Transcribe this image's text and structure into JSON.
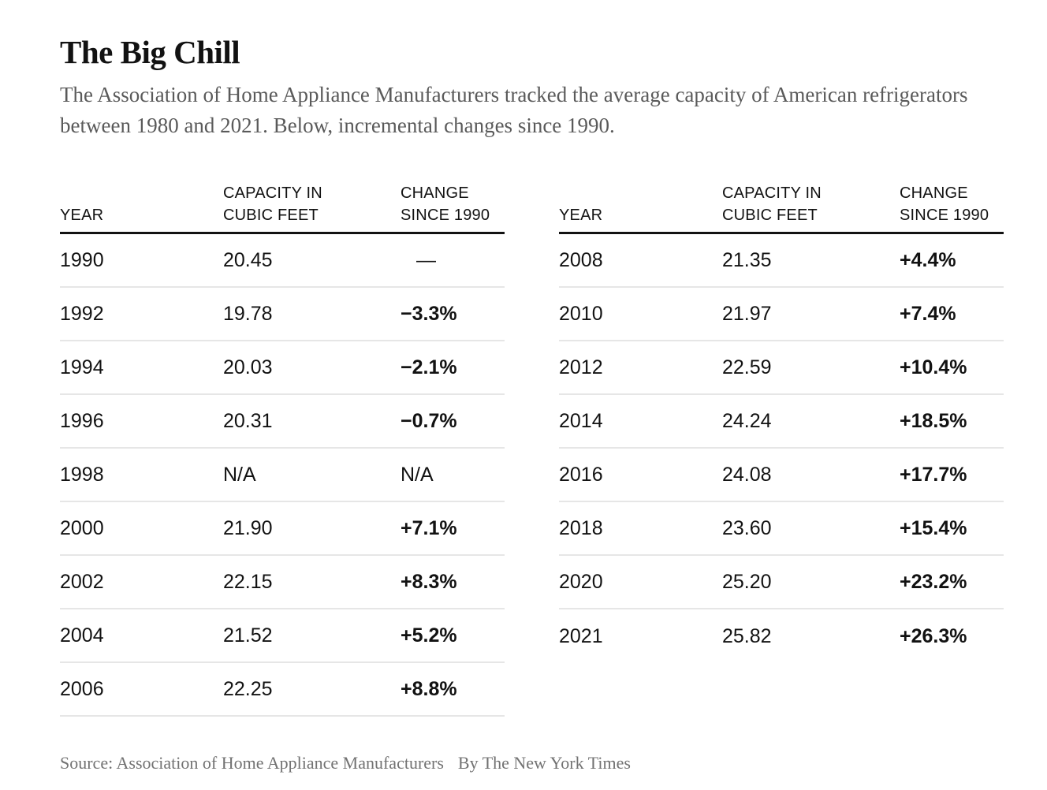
{
  "page": {
    "title": "The Big Chill",
    "subtitle": "The Association of Home Appliance Manufacturers tracked the average capacity of American refrigerators between 1980 and 2021. Below, incremental changes since 1990.",
    "source_label": "Source: Association of Home Appliance Manufacturers",
    "byline": "By The New York Times"
  },
  "colors": {
    "text": "#121212",
    "subtitle": "#5a5a5a",
    "footer": "#727272",
    "header_rule": "#121212",
    "row_divider": "#e6e6e6",
    "background": "#ffffff"
  },
  "table_headers": {
    "year": "YEAR",
    "capacity_line1": "CAPACITY IN",
    "capacity_line2": "CUBIC FEET",
    "change_line1": "CHANGE",
    "change_line2": "SINCE 1990"
  },
  "tables": [
    {
      "rows": [
        {
          "year": "1990",
          "capacity": "20.45",
          "change": "—",
          "bold": false,
          "dash": true
        },
        {
          "year": "1992",
          "capacity": "19.78",
          "change": "−3.3%",
          "bold": true,
          "dash": false
        },
        {
          "year": "1994",
          "capacity": "20.03",
          "change": "−2.1%",
          "bold": true,
          "dash": false
        },
        {
          "year": "1996",
          "capacity": "20.31",
          "change": "−0.7%",
          "bold": true,
          "dash": false
        },
        {
          "year": "1998",
          "capacity": "N/A",
          "change": "N/A",
          "bold": false,
          "dash": false
        },
        {
          "year": "2000",
          "capacity": "21.90",
          "change": "+7.1%",
          "bold": true,
          "dash": false
        },
        {
          "year": "2002",
          "capacity": "22.15",
          "change": "+8.3%",
          "bold": true,
          "dash": false
        },
        {
          "year": "2004",
          "capacity": "21.52",
          "change": "+5.2%",
          "bold": true,
          "dash": false
        },
        {
          "year": "2006",
          "capacity": "22.25",
          "change": "+8.8%",
          "bold": true,
          "dash": false
        }
      ]
    },
    {
      "rows": [
        {
          "year": "2008",
          "capacity": "21.35",
          "change": "+4.4%",
          "bold": true,
          "dash": false
        },
        {
          "year": "2010",
          "capacity": "21.97",
          "change": "+7.4%",
          "bold": true,
          "dash": false
        },
        {
          "year": "2012",
          "capacity": "22.59",
          "change": "+10.4%",
          "bold": true,
          "dash": false
        },
        {
          "year": "2014",
          "capacity": "24.24",
          "change": "+18.5%",
          "bold": true,
          "dash": false
        },
        {
          "year": "2016",
          "capacity": "24.08",
          "change": "+17.7%",
          "bold": true,
          "dash": false
        },
        {
          "year": "2018",
          "capacity": "23.60",
          "change": "+15.4%",
          "bold": true,
          "dash": false
        },
        {
          "year": "2020",
          "capacity": "25.20",
          "change": "+23.2%",
          "bold": true,
          "dash": false
        },
        {
          "year": "2021",
          "capacity": "25.82",
          "change": "+26.3%",
          "bold": true,
          "dash": false
        }
      ]
    }
  ],
  "chart_data": {
    "type": "table",
    "title": "The Big Chill",
    "subtitle": "The Association of Home Appliance Manufacturers tracked the average capacity of American refrigerators between 1980 and 2021. Below, incremental changes since 1990.",
    "columns": [
      "Year",
      "Capacity in cubic feet",
      "Change since 1990"
    ],
    "rows": [
      [
        "1990",
        "20.45",
        "—"
      ],
      [
        "1992",
        "19.78",
        "−3.3%"
      ],
      [
        "1994",
        "20.03",
        "−2.1%"
      ],
      [
        "1996",
        "20.31",
        "−0.7%"
      ],
      [
        "1998",
        "N/A",
        "N/A"
      ],
      [
        "2000",
        "21.90",
        "+7.1%"
      ],
      [
        "2002",
        "22.15",
        "+8.3%"
      ],
      [
        "2004",
        "21.52",
        "+5.2%"
      ],
      [
        "2006",
        "22.25",
        "+8.8%"
      ],
      [
        "2008",
        "21.35",
        "+4.4%"
      ],
      [
        "2010",
        "21.97",
        "+7.4%"
      ],
      [
        "2012",
        "22.59",
        "+10.4%"
      ],
      [
        "2014",
        "24.24",
        "+18.5%"
      ],
      [
        "2016",
        "24.08",
        "+17.7%"
      ],
      [
        "2018",
        "23.60",
        "+15.4%"
      ],
      [
        "2020",
        "25.20",
        "+23.2%"
      ],
      [
        "2021",
        "25.82",
        "+26.3%"
      ]
    ],
    "source": "Association of Home Appliance Manufacturers",
    "byline": "By The New York Times"
  }
}
